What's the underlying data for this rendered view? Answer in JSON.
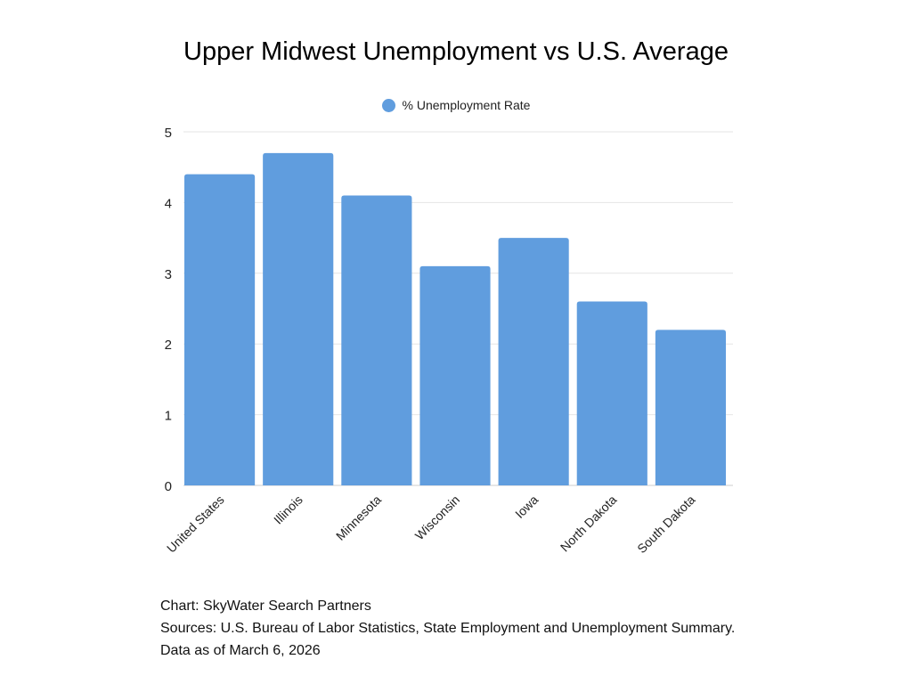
{
  "chart_data": {
    "type": "bar",
    "title": "Upper Midwest Unemployment vs U.S. Average",
    "categories": [
      "United States",
      "Illinois",
      "Minnesota",
      "Wisconsin",
      "Iowa",
      "North Dakota",
      "South Dakota"
    ],
    "series": [
      {
        "name": "% Unemployment Rate",
        "values": [
          4.4,
          4.7,
          4.1,
          3.1,
          3.5,
          2.6,
          2.2
        ],
        "color": "#609dde"
      }
    ],
    "xlabel": "",
    "ylabel": "",
    "ylim": [
      0,
      5
    ],
    "yticks": [
      0,
      1,
      2,
      3,
      4,
      5
    ],
    "grid": true,
    "legend": "top-center"
  },
  "footer": {
    "credit": "Chart: SkyWater Search Partners",
    "sources": "Sources: U.S. Bureau of Labor Statistics, State Employment and Unemployment Summary.",
    "date": "Data as of March 6, 2026"
  }
}
